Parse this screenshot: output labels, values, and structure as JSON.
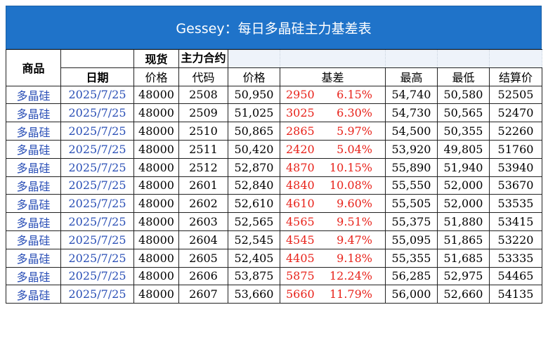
{
  "title": "Gessey：每日多晶硅主力基差表",
  "headers": {
    "product": "商品",
    "spot": "现货",
    "main_contract": "主力合约",
    "date": "日期",
    "spot_price": "价格",
    "code": "代码",
    "price": "价格",
    "basis": "基差",
    "high": "最高",
    "low": "最低",
    "settle": "结算价"
  },
  "rows": [
    {
      "product": "多晶硅",
      "date": "2025/7/25",
      "spot": "48000",
      "code": "2508",
      "price": "50,950",
      "basis": "2950",
      "pct": "6.15%",
      "high": "54,740",
      "low": "50,580",
      "settle": "52505"
    },
    {
      "product": "多晶硅",
      "date": "2025/7/25",
      "spot": "48000",
      "code": "2509",
      "price": "51,025",
      "basis": "3025",
      "pct": "6.30%",
      "high": "54,730",
      "low": "50,565",
      "settle": "52470"
    },
    {
      "product": "多晶硅",
      "date": "2025/7/25",
      "spot": "48000",
      "code": "2510",
      "price": "50,865",
      "basis": "2865",
      "pct": "5.97%",
      "high": "54,500",
      "low": "50,355",
      "settle": "52260"
    },
    {
      "product": "多晶硅",
      "date": "2025/7/25",
      "spot": "48000",
      "code": "2511",
      "price": "50,420",
      "basis": "2420",
      "pct": "5.04%",
      "high": "53,920",
      "low": "49,805",
      "settle": "51760"
    },
    {
      "product": "多晶硅",
      "date": "2025/7/25",
      "spot": "48000",
      "code": "2512",
      "price": "52,870",
      "basis": "4870",
      "pct": "10.15%",
      "high": "55,890",
      "low": "51,940",
      "settle": "53940"
    },
    {
      "product": "多晶硅",
      "date": "2025/7/25",
      "spot": "48000",
      "code": "2601",
      "price": "52,840",
      "basis": "4840",
      "pct": "10.08%",
      "high": "55,550",
      "low": "52,000",
      "settle": "53670"
    },
    {
      "product": "多晶硅",
      "date": "2025/7/25",
      "spot": "48000",
      "code": "2602",
      "price": "52,610",
      "basis": "4610",
      "pct": "9.60%",
      "high": "55,505",
      "low": "52,000",
      "settle": "53535"
    },
    {
      "product": "多晶硅",
      "date": "2025/7/25",
      "spot": "48000",
      "code": "2603",
      "price": "52,565",
      "basis": "4565",
      "pct": "9.51%",
      "high": "55,375",
      "low": "51,880",
      "settle": "53415"
    },
    {
      "product": "多晶硅",
      "date": "2025/7/25",
      "spot": "48000",
      "code": "2604",
      "price": "52,545",
      "basis": "4545",
      "pct": "9.47%",
      "high": "55,095",
      "low": "51,865",
      "settle": "53220"
    },
    {
      "product": "多晶硅",
      "date": "2025/7/25",
      "spot": "48000",
      "code": "2605",
      "price": "52,405",
      "basis": "4405",
      "pct": "9.18%",
      "high": "55,355",
      "low": "51,685",
      "settle": "53335"
    },
    {
      "product": "多晶硅",
      "date": "2025/7/25",
      "spot": "48000",
      "code": "2606",
      "price": "53,875",
      "basis": "5875",
      "pct": "12.24%",
      "high": "56,285",
      "low": "52,975",
      "settle": "54465"
    },
    {
      "product": "多晶硅",
      "date": "2025/7/25",
      "spot": "48000",
      "code": "2607",
      "price": "53,660",
      "basis": "5660",
      "pct": "11.79%",
      "high": "56,000",
      "low": "52,660",
      "settle": "54135"
    }
  ]
}
